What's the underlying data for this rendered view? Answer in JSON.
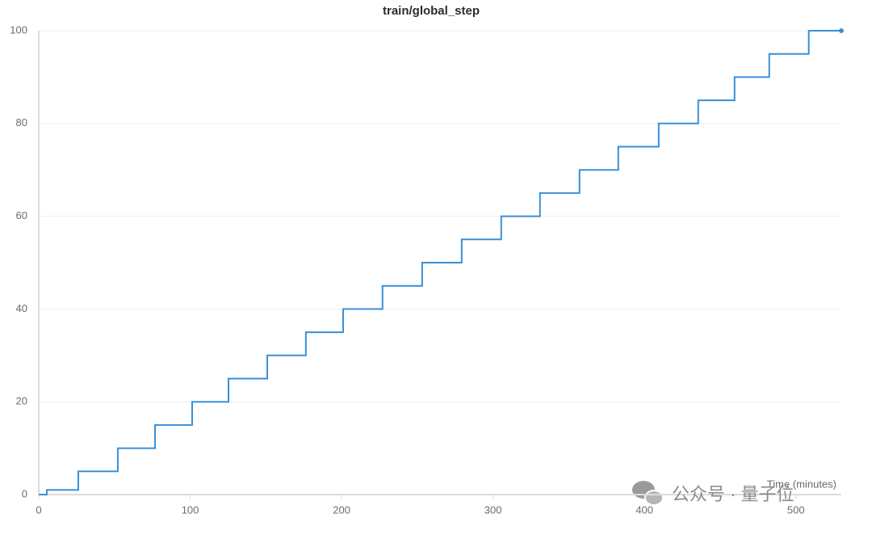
{
  "chart_data": {
    "type": "line",
    "title": "train/global_step",
    "x_label": "Time (minutes)",
    "step": "post",
    "x": [
      0,
      5.3,
      26.1,
      52.2,
      76.8,
      101.3,
      125.3,
      150.9,
      176.4,
      201,
      227,
      253.2,
      279.3,
      305.4,
      331,
      357.1,
      382.7,
      409.4,
      435.5,
      459.5,
      482.4,
      508.5,
      530
    ],
    "series": [
      {
        "name": "train/global_step",
        "color": "#3a8fd6",
        "values": [
          0,
          1,
          5,
          10,
          15,
          20,
          25,
          30,
          35,
          40,
          45,
          50,
          55,
          60,
          65,
          70,
          75,
          80,
          85,
          90,
          95,
          100,
          100
        ]
      }
    ],
    "xlim": [
      0,
      530
    ],
    "xticks": [
      0,
      100,
      200,
      300,
      400,
      500
    ],
    "ylim": [
      0,
      100
    ],
    "yticks": [
      0,
      20,
      40,
      60,
      80,
      100
    ],
    "grid": true
  },
  "watermark": "公众号 · 量子位"
}
